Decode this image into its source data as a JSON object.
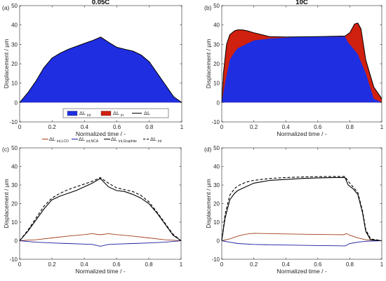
{
  "colors": {
    "int": "#1f2ee0",
    "irr": "#d0200f",
    "total": "#000000",
    "lco": "#a0401a",
    "nca": "#1a1aa0",
    "graphite": "#000000"
  },
  "chart_data": [
    {
      "panel": "(a)",
      "type": "area",
      "title": "0.05C",
      "xlabel": "Normalized time / -",
      "ylabel": "Displacement / µm",
      "xlim": [
        0,
        1
      ],
      "ylim": [
        -10,
        50
      ],
      "xticks": [
        "0",
        "0.2",
        "0.4",
        "0.6",
        "0.8",
        "1"
      ],
      "yticks": [
        "-10",
        "0",
        "10",
        "20",
        "30",
        "40",
        "50"
      ],
      "legend": {
        "placement": "bottom-center",
        "entries": [
          {
            "main": "ΔL",
            "sub": "int",
            "key": "int",
            "style": "patch"
          },
          {
            "main": "ΔL",
            "sub": "irr",
            "key": "irr",
            "style": "patch"
          },
          {
            "main": "ΔL",
            "sub": "",
            "key": "total",
            "style": "line"
          }
        ]
      },
      "series": [
        {
          "key": "int",
          "x": [
            0,
            0.05,
            0.1,
            0.15,
            0.2,
            0.25,
            0.3,
            0.35,
            0.4,
            0.45,
            0.5,
            0.55,
            0.6,
            0.65,
            0.7,
            0.75,
            0.8,
            0.85,
            0.9,
            0.95,
            1.0
          ],
          "y": [
            0,
            5,
            11,
            18,
            23,
            25.5,
            27.5,
            29,
            30.5,
            32,
            33.5,
            31,
            28.5,
            27.5,
            26.5,
            24.5,
            21,
            15,
            9,
            3,
            0
          ]
        },
        {
          "key": "total",
          "x": [
            0,
            0.05,
            0.1,
            0.15,
            0.2,
            0.25,
            0.3,
            0.35,
            0.4,
            0.45,
            0.5,
            0.55,
            0.6,
            0.65,
            0.7,
            0.75,
            0.8,
            0.85,
            0.9,
            0.95,
            1.0
          ],
          "y": [
            0,
            5,
            11,
            18,
            23,
            25.5,
            27.5,
            29,
            30.5,
            32,
            33.8,
            31,
            28.5,
            27.5,
            26.5,
            24.5,
            21,
            15,
            9,
            3,
            0
          ]
        }
      ]
    },
    {
      "panel": "(b)",
      "type": "area",
      "title": "10C",
      "xlabel": "Normalized time / -",
      "ylabel": "Displacement / µm",
      "xlim": [
        0,
        1
      ],
      "ylim": [
        -10,
        50
      ],
      "xticks": [
        "0",
        "0.2",
        "0.4",
        "0.6",
        "0.8",
        "1"
      ],
      "yticks": [
        "-10",
        "0",
        "10",
        "20",
        "30",
        "40",
        "50"
      ],
      "series": [
        {
          "key": "int",
          "x": [
            0,
            0.02,
            0.05,
            0.08,
            0.1,
            0.15,
            0.2,
            0.3,
            0.4,
            0.5,
            0.6,
            0.7,
            0.77,
            0.79,
            0.82,
            0.85,
            0.9,
            0.95,
            1.0
          ],
          "y": [
            0,
            10,
            22,
            26,
            28,
            30,
            32,
            33,
            33.5,
            34,
            34,
            34,
            34,
            31,
            28,
            25,
            15,
            2,
            0
          ]
        },
        {
          "key": "total",
          "x": [
            0,
            0.01,
            0.03,
            0.05,
            0.08,
            0.1,
            0.13,
            0.16,
            0.2,
            0.25,
            0.3,
            0.4,
            0.5,
            0.6,
            0.7,
            0.77,
            0.8,
            0.83,
            0.85,
            0.87,
            0.9,
            0.95,
            1.0
          ],
          "y": [
            0,
            15,
            30,
            35,
            37,
            37.5,
            37.5,
            37,
            36,
            35,
            34,
            33.8,
            33.9,
            34,
            34.2,
            34.3,
            36,
            40.5,
            41,
            38,
            22,
            8,
            2
          ]
        }
      ]
    },
    {
      "panel": "(c)",
      "type": "line",
      "xlabel": "Normalized time / -",
      "ylabel": "Displacement / µm",
      "xlim": [
        0,
        1
      ],
      "ylim": [
        -10,
        50
      ],
      "xticks": [
        "0",
        "0.2",
        "0.4",
        "0.6",
        "0.8",
        "1"
      ],
      "yticks": [
        "-10",
        "0",
        "10",
        "20",
        "30",
        "40",
        "50"
      ],
      "legend": {
        "placement": "top",
        "entries": [
          {
            "main": "ΔL",
            "sub": "int,LCO",
            "key": "lco",
            "style": "line"
          },
          {
            "main": "ΔL",
            "sub": "int,NCA",
            "key": "nca",
            "style": "line"
          },
          {
            "main": "ΔL",
            "sub": "int,Graphite",
            "key": "graphite",
            "style": "line"
          },
          {
            "main": "ΔL",
            "sub": "int",
            "key": "total",
            "style": "dash"
          }
        ]
      },
      "series": [
        {
          "key": "lco",
          "x": [
            0,
            0.05,
            0.1,
            0.2,
            0.3,
            0.4,
            0.45,
            0.5,
            0.55,
            0.6,
            0.7,
            0.8,
            0.9,
            1.0
          ],
          "y": [
            0,
            0.3,
            0.5,
            1.5,
            2.5,
            3.3,
            3.8,
            3.2,
            3.8,
            3.3,
            2.5,
            1.5,
            0.5,
            0
          ]
        },
        {
          "key": "nca",
          "x": [
            0,
            0.1,
            0.2,
            0.3,
            0.4,
            0.45,
            0.5,
            0.55,
            0.6,
            0.7,
            0.8,
            0.9,
            1.0
          ],
          "y": [
            0,
            -0.8,
            -1.2,
            -1.5,
            -1.8,
            -2,
            -3,
            -2,
            -1.8,
            -1.5,
            -1.2,
            -0.8,
            0
          ]
        },
        {
          "key": "graphite",
          "x": [
            0,
            0.05,
            0.1,
            0.15,
            0.2,
            0.25,
            0.3,
            0.35,
            0.4,
            0.45,
            0.5,
            0.55,
            0.6,
            0.65,
            0.7,
            0.75,
            0.8,
            0.85,
            0.9,
            0.95,
            1.0
          ],
          "y": [
            0,
            5,
            11,
            17,
            22,
            24,
            25.5,
            27,
            29,
            31,
            33.5,
            29,
            27,
            26.5,
            25,
            23,
            20,
            15,
            9,
            3,
            0
          ]
        },
        {
          "key": "total",
          "x": [
            0,
            0.05,
            0.1,
            0.15,
            0.2,
            0.25,
            0.3,
            0.35,
            0.4,
            0.45,
            0.5,
            0.55,
            0.6,
            0.65,
            0.7,
            0.75,
            0.8,
            0.85,
            0.9,
            0.95,
            1.0
          ],
          "y": [
            0,
            5.5,
            12,
            18.5,
            23,
            25.5,
            27.5,
            29,
            30.5,
            32,
            34,
            31,
            28.5,
            27.5,
            26.5,
            24.5,
            21,
            15.5,
            9.5,
            3.5,
            0
          ]
        }
      ]
    },
    {
      "panel": "(d)",
      "type": "line",
      "xlabel": "Normalized time / -",
      "ylabel": "Displacement / µm",
      "xlim": [
        0,
        1
      ],
      "ylim": [
        -10,
        50
      ],
      "xticks": [
        "0",
        "0.2",
        "0.4",
        "0.6",
        "0.8",
        "1"
      ],
      "yticks": [
        "-10",
        "0",
        "10",
        "20",
        "30",
        "40",
        "50"
      ],
      "series": [
        {
          "key": "lco",
          "x": [
            0,
            0.05,
            0.1,
            0.15,
            0.2,
            0.3,
            0.5,
            0.7,
            0.76,
            0.78,
            0.8,
            0.85,
            0.9,
            1.0
          ],
          "y": [
            0,
            1,
            2.5,
            3.5,
            4,
            3.8,
            3.5,
            3.3,
            3.2,
            3.8,
            3,
            1.5,
            0.5,
            0
          ]
        },
        {
          "key": "nca",
          "x": [
            0,
            0.05,
            0.1,
            0.2,
            0.3,
            0.5,
            0.7,
            0.77,
            0.8,
            0.85,
            0.9,
            1.0
          ],
          "y": [
            0,
            -0.8,
            -1.5,
            -2,
            -2.2,
            -2.5,
            -2.7,
            -2.8,
            -1.5,
            -0.8,
            -0.3,
            0
          ]
        },
        {
          "key": "graphite",
          "x": [
            0,
            0.02,
            0.05,
            0.08,
            0.1,
            0.15,
            0.2,
            0.3,
            0.4,
            0.5,
            0.6,
            0.7,
            0.77,
            0.79,
            0.82,
            0.85,
            0.88,
            0.9,
            0.93,
            1.0
          ],
          "y": [
            0,
            12,
            22,
            25.5,
            27,
            29,
            31,
            32.5,
            33,
            33.5,
            33.8,
            34,
            34,
            30,
            28,
            25,
            15,
            5,
            0.5,
            0
          ]
        },
        {
          "key": "total",
          "x": [
            0,
            0.02,
            0.05,
            0.08,
            0.1,
            0.15,
            0.2,
            0.3,
            0.4,
            0.5,
            0.6,
            0.7,
            0.77,
            0.79,
            0.82,
            0.85,
            0.88,
            0.9,
            0.93,
            1.0
          ],
          "y": [
            0,
            14,
            24.5,
            28,
            29.5,
            31.5,
            32.5,
            33.5,
            34,
            34.3,
            34.5,
            34.6,
            34.6,
            32,
            29,
            26,
            16,
            6,
            1,
            0
          ]
        }
      ]
    }
  ]
}
